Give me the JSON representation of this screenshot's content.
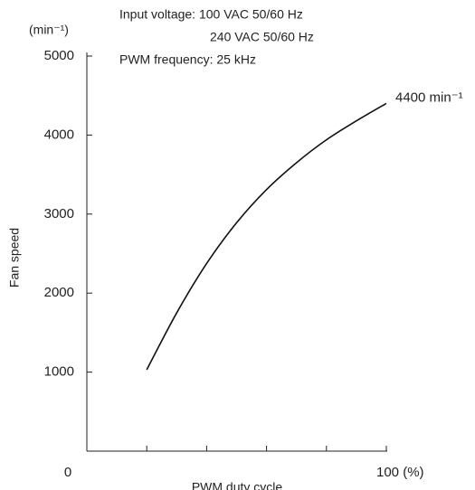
{
  "chart_data": {
    "type": "line",
    "x_label": "PWM duty cycle",
    "y_label": "Fan speed",
    "y_unit": "(min⁻¹)",
    "annotations": [
      "Input voltage: 100 VAC  50/60 Hz",
      "240 VAC  50/60 Hz",
      "PWM frequency: 25 kHz",
      "4400 min⁻¹"
    ],
    "x": [
      20,
      30,
      40,
      50,
      60,
      70,
      80,
      90,
      100
    ],
    "series": [
      {
        "color": "#111111",
        "values": [
          1030,
          1750,
          2375,
          2890,
          3310,
          3650,
          3940,
          4180,
          4400
        ]
      }
    ],
    "xlim": [
      0,
      100
    ],
    "ylim": [
      0,
      5000
    ],
    "xticks": [
      0,
      {
        "value": 100,
        "label": "100 (%)"
      }
    ],
    "xminor_ticks": [
      20,
      40,
      60,
      80
    ],
    "yticks": [
      1000,
      2000,
      3000,
      4000,
      5000
    ],
    "grid": false
  }
}
